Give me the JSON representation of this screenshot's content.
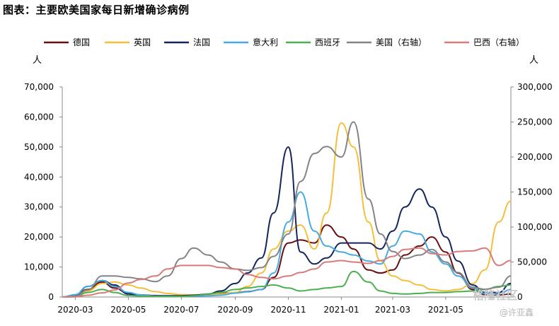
{
  "title": "图表：主要欧美国家每日新增确诊病例",
  "units": {
    "left": "人",
    "right": "人"
  },
  "watermark": {
    "main": "格隆社区",
    "sub": "@许亚鑫"
  },
  "chart_data": {
    "type": "line",
    "x_ticks": [
      "2020-03",
      "2020-05",
      "2020-07",
      "2020-09",
      "2020-11",
      "2021-01",
      "2021-03",
      "2021-05"
    ],
    "x": [
      "2020-02-15",
      "2020-03-01",
      "2020-03-15",
      "2020-04-01",
      "2020-04-15",
      "2020-05-01",
      "2020-05-15",
      "2020-06-01",
      "2020-06-15",
      "2020-07-01",
      "2020-07-15",
      "2020-08-01",
      "2020-08-15",
      "2020-09-01",
      "2020-09-15",
      "2020-10-01",
      "2020-10-15",
      "2020-11-01",
      "2020-11-15",
      "2020-12-01",
      "2020-12-15",
      "2021-01-01",
      "2021-01-15",
      "2021-02-01",
      "2021-02-15",
      "2021-03-01",
      "2021-03-15",
      "2021-04-01",
      "2021-04-15",
      "2021-05-01",
      "2021-05-15",
      "2021-06-01",
      "2021-06-15",
      "2021-07-01",
      "2021-07-15"
    ],
    "y_left": {
      "ticks": [
        "0",
        "10,000",
        "20,000",
        "30,000",
        "40,000",
        "50,000",
        "60,000",
        "70,000"
      ],
      "lim": [
        0,
        70000
      ]
    },
    "y_right": {
      "ticks": [
        "0",
        "50,000",
        "100,000",
        "150,000",
        "200,000",
        "250,000",
        "300,000"
      ],
      "lim": [
        0,
        300000
      ]
    },
    "series": [
      {
        "name": "德国",
        "axis": "left",
        "color": "#6a0f0f",
        "values": [
          0,
          300,
          2500,
          5000,
          3000,
          1200,
          700,
          500,
          400,
          400,
          500,
          800,
          1200,
          1400,
          1800,
          2500,
          6500,
          18000,
          19000,
          18000,
          24000,
          20000,
          16000,
          9000,
          8000,
          9000,
          14000,
          17000,
          20000,
          15000,
          8000,
          2500,
          800,
          700,
          1000
        ]
      },
      {
        "name": "英国",
        "axis": "left",
        "color": "#f5bf3c",
        "values": [
          0,
          200,
          2000,
          4500,
          5000,
          4000,
          3000,
          1800,
          1200,
          800,
          700,
          800,
          1000,
          1500,
          3500,
          8000,
          16000,
          22000,
          24000,
          16000,
          28000,
          58000,
          50000,
          25000,
          12000,
          7000,
          5500,
          4000,
          2500,
          2000,
          2500,
          4500,
          9000,
          25000,
          32000
        ]
      },
      {
        "name": "法国",
        "axis": "left",
        "color": "#15255e",
        "values": [
          0,
          300,
          3500,
          5500,
          4000,
          1000,
          500,
          400,
          400,
          400,
          600,
          1000,
          2000,
          4500,
          8000,
          13000,
          28000,
          50000,
          15000,
          11000,
          13000,
          18000,
          18000,
          18000,
          16000,
          22000,
          30000,
          36000,
          30000,
          20000,
          12000,
          4000,
          1500,
          1500,
          4500
        ]
      },
      {
        "name": "意大利",
        "axis": "left",
        "color": "#46abe3",
        "values": [
          0,
          800,
          3500,
          5500,
          3500,
          1500,
          700,
          300,
          250,
          200,
          250,
          400,
          600,
          1300,
          1700,
          2500,
          8000,
          25000,
          35000,
          22000,
          17000,
          15000,
          14000,
          12000,
          11000,
          17000,
          22000,
          21000,
          15000,
          11000,
          7000,
          3000,
          1200,
          1000,
          2500
        ]
      },
      {
        "name": "西班牙",
        "axis": "left",
        "color": "#4caf50",
        "values": [
          0,
          100,
          1500,
          2500,
          1500,
          500,
          300,
          200,
          200,
          200,
          400,
          1000,
          1500,
          2500,
          3000,
          3500,
          4000,
          3000,
          2000,
          2500,
          3000,
          3500,
          8500,
          5000,
          2000,
          1200,
          1000,
          1200,
          1500,
          1500,
          1800,
          2000,
          2500,
          3500,
          4000
        ]
      },
      {
        "name": "美国（右轴）",
        "axis": "right",
        "color": "#848484",
        "values": [
          0,
          1000,
          10000,
          30000,
          30000,
          28000,
          26000,
          22000,
          30000,
          55000,
          70000,
          60000,
          50000,
          40000,
          38000,
          42000,
          58000,
          90000,
          165000,
          205000,
          215000,
          200000,
          250000,
          140000,
          90000,
          65000,
          55000,
          60000,
          68000,
          50000,
          35000,
          14000,
          11000,
          14000,
          30000
        ]
      },
      {
        "name": "巴西（右轴）",
        "axis": "right",
        "color": "#d77b7b",
        "values": [
          0,
          300,
          2500,
          6000,
          10000,
          20000,
          25000,
          30000,
          40000,
          45000,
          45000,
          45000,
          42000,
          40000,
          32000,
          28000,
          26000,
          30000,
          35000,
          40000,
          50000,
          52000,
          50000,
          48000,
          52000,
          58000,
          68000,
          70000,
          62000,
          60000,
          65000,
          66000,
          70000,
          45000,
          52000
        ]
      }
    ],
    "legend_position": "top",
    "grid": false
  }
}
